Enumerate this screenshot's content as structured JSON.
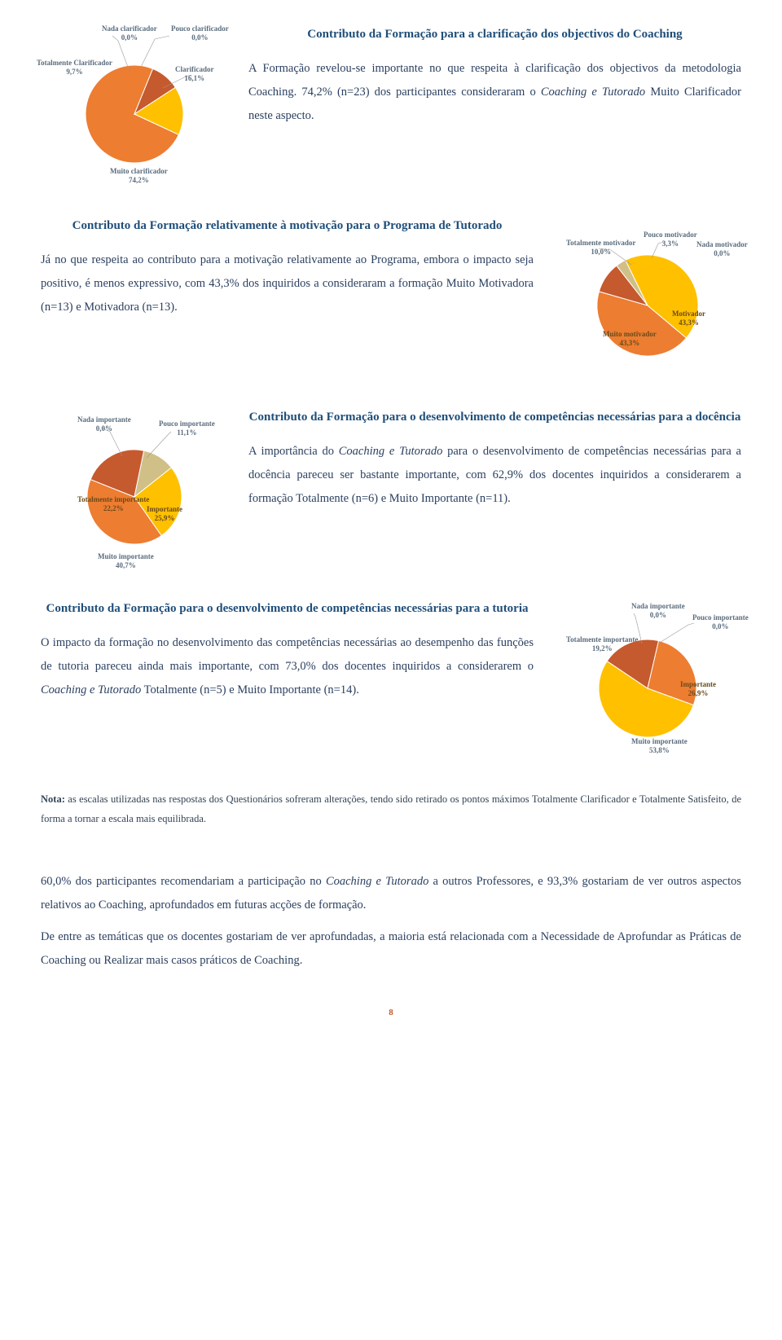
{
  "colors": {
    "title": "#1f4e79",
    "body": "#2a3f5f",
    "label": "#5a6c7d",
    "pagenum": "#c55a2e"
  },
  "section1": {
    "title": "Contributo da Formação para a clarificação dos objectivos do Coaching",
    "body": "A Formação revelou-se importante no que respeita à clarificação dos objectivos da metodologia Coaching. 74,2% (n=23) dos participantes consideraram o Coaching e Tutorado Muito Clarificador neste aspecto.",
    "chart": {
      "type": "pie",
      "size": 200,
      "pie_radius": 60,
      "background_color": "#ffffff",
      "slices": [
        {
          "label": "Muito clarificador",
          "pct": "74,2%",
          "value": 74.2,
          "color": "#ed7d31"
        },
        {
          "label": "Totalmente Clarificador",
          "pct": "9,7%",
          "value": 9.7,
          "color": "#c55a2e"
        },
        {
          "label": "Nada clarificador",
          "pct": "0,0%",
          "value": 0.0,
          "color": "#7f7f7f"
        },
        {
          "label": "Pouco clarificador",
          "pct": "0,0%",
          "value": 0.0,
          "color": "#bfbfbf"
        },
        {
          "label": "Clarificador",
          "pct": "16,1%",
          "value": 16.1,
          "color": "#ffc000"
        }
      ]
    }
  },
  "section2": {
    "title": "Contributo da Formação relativamente à motivação para o Programa de Tutorado",
    "body": "Já no que respeita ao contributo para a motivação relativamente ao Programa, embora o impacto seja positivo, é menos expressivo, com 43,3% dos inquiridos a consideraram a formação Muito Motivadora (n=13) e Motivadora (n=13).",
    "chart": {
      "type": "pie",
      "size": 200,
      "pie_radius": 62,
      "background_color": "#ffffff",
      "slices": [
        {
          "label": "Muito motivador",
          "pct": "43,3%",
          "value": 43.3,
          "color": "#ed7d31"
        },
        {
          "label": "Totalmente motivador",
          "pct": "10,0%",
          "value": 10.0,
          "color": "#c55a2e"
        },
        {
          "label": "Pouco motivador",
          "pct": "3,3%",
          "value": 3.3,
          "color": "#d0c087"
        },
        {
          "label": "Nada motivador",
          "pct": "0,0%",
          "value": 0.0,
          "color": "#7f7f7f"
        },
        {
          "label": "Motivador",
          "pct": "43,3%",
          "value": 43.3,
          "color": "#ffc000"
        }
      ]
    }
  },
  "section3": {
    "title": "Contributo da Formação para o desenvolvimento de competências necessárias para a docência",
    "body": "A importância do Coaching e Tutorado para o desenvolvimento de competências necessárias para a docência pareceu ser bastante importante, com 62,9% dos docentes inquiridos a considerarem a formação Totalmente (n=6) e Muito Importante (n=11).",
    "chart": {
      "type": "pie",
      "size": 200,
      "pie_radius": 58,
      "background_color": "#ffffff",
      "slices": [
        {
          "label": "Muito importante",
          "pct": "40,7%",
          "value": 40.7,
          "color": "#ed7d31"
        },
        {
          "label": "Totalmente importante",
          "pct": "22,2%",
          "value": 22.2,
          "color": "#c55a2e"
        },
        {
          "label": "Nada importante",
          "pct": "0,0%",
          "value": 0.0,
          "color": "#7f7f7f"
        },
        {
          "label": "Pouco importante",
          "pct": "11,1%",
          "value": 11.1,
          "color": "#d0c087"
        },
        {
          "label": "Importante",
          "pct": "25,9%",
          "value": 25.9,
          "color": "#ffc000"
        }
      ]
    }
  },
  "section4": {
    "title": "Contributo da Formação para o desenvolvimento de competências necessárias para a tutoria",
    "body": "O impacto da formação no desenvolvimento das competências necessárias ao desempenho das funções de tutoria pareceu ainda mais importante, com 73,0% dos docentes inquiridos a considerarem o Coaching e Tutorado Totalmente (n=5) e Muito Importante (n=14).",
    "chart": {
      "type": "pie",
      "size": 200,
      "pie_radius": 60,
      "background_color": "#ffffff",
      "slices": [
        {
          "label": "Muito importante",
          "pct": "53,8%",
          "value": 53.8,
          "color": "#ffc000"
        },
        {
          "label": "Totalmente importante",
          "pct": "19,2%",
          "value": 19.2,
          "color": "#c55a2e"
        },
        {
          "label": "Nada importante",
          "pct": "0,0%",
          "value": 0.0,
          "color": "#7f7f7f"
        },
        {
          "label": "Pouco importante",
          "pct": "0,0%",
          "value": 0.0,
          "color": "#bfbfbf"
        },
        {
          "label": "Importante",
          "pct": "26,9%",
          "value": 26.9,
          "color": "#ed7d31"
        }
      ]
    }
  },
  "note": {
    "bold": "Nota:",
    "text": " as escalas utilizadas nas respostas dos Questionários sofreram alterações, tendo sido retirado os pontos máximos Totalmente Clarificador e Totalmente Satisfeito, de forma a tornar a escala mais equilibrada."
  },
  "closing": {
    "p1": "60,0% dos participantes recomendariam a participação no Coaching e Tutorado a outros Professores, e 93,3% gostariam de ver outros aspectos relativos ao Coaching, aprofundados em futuras acções de formação.",
    "p2": "De entre as temáticas que os docentes gostariam de ver aprofundadas, a maioria está relacionada com a Necessidade de Aprofundar as Práticas de Coaching ou Realizar mais casos práticos de Coaching."
  },
  "pagenum": "8"
}
